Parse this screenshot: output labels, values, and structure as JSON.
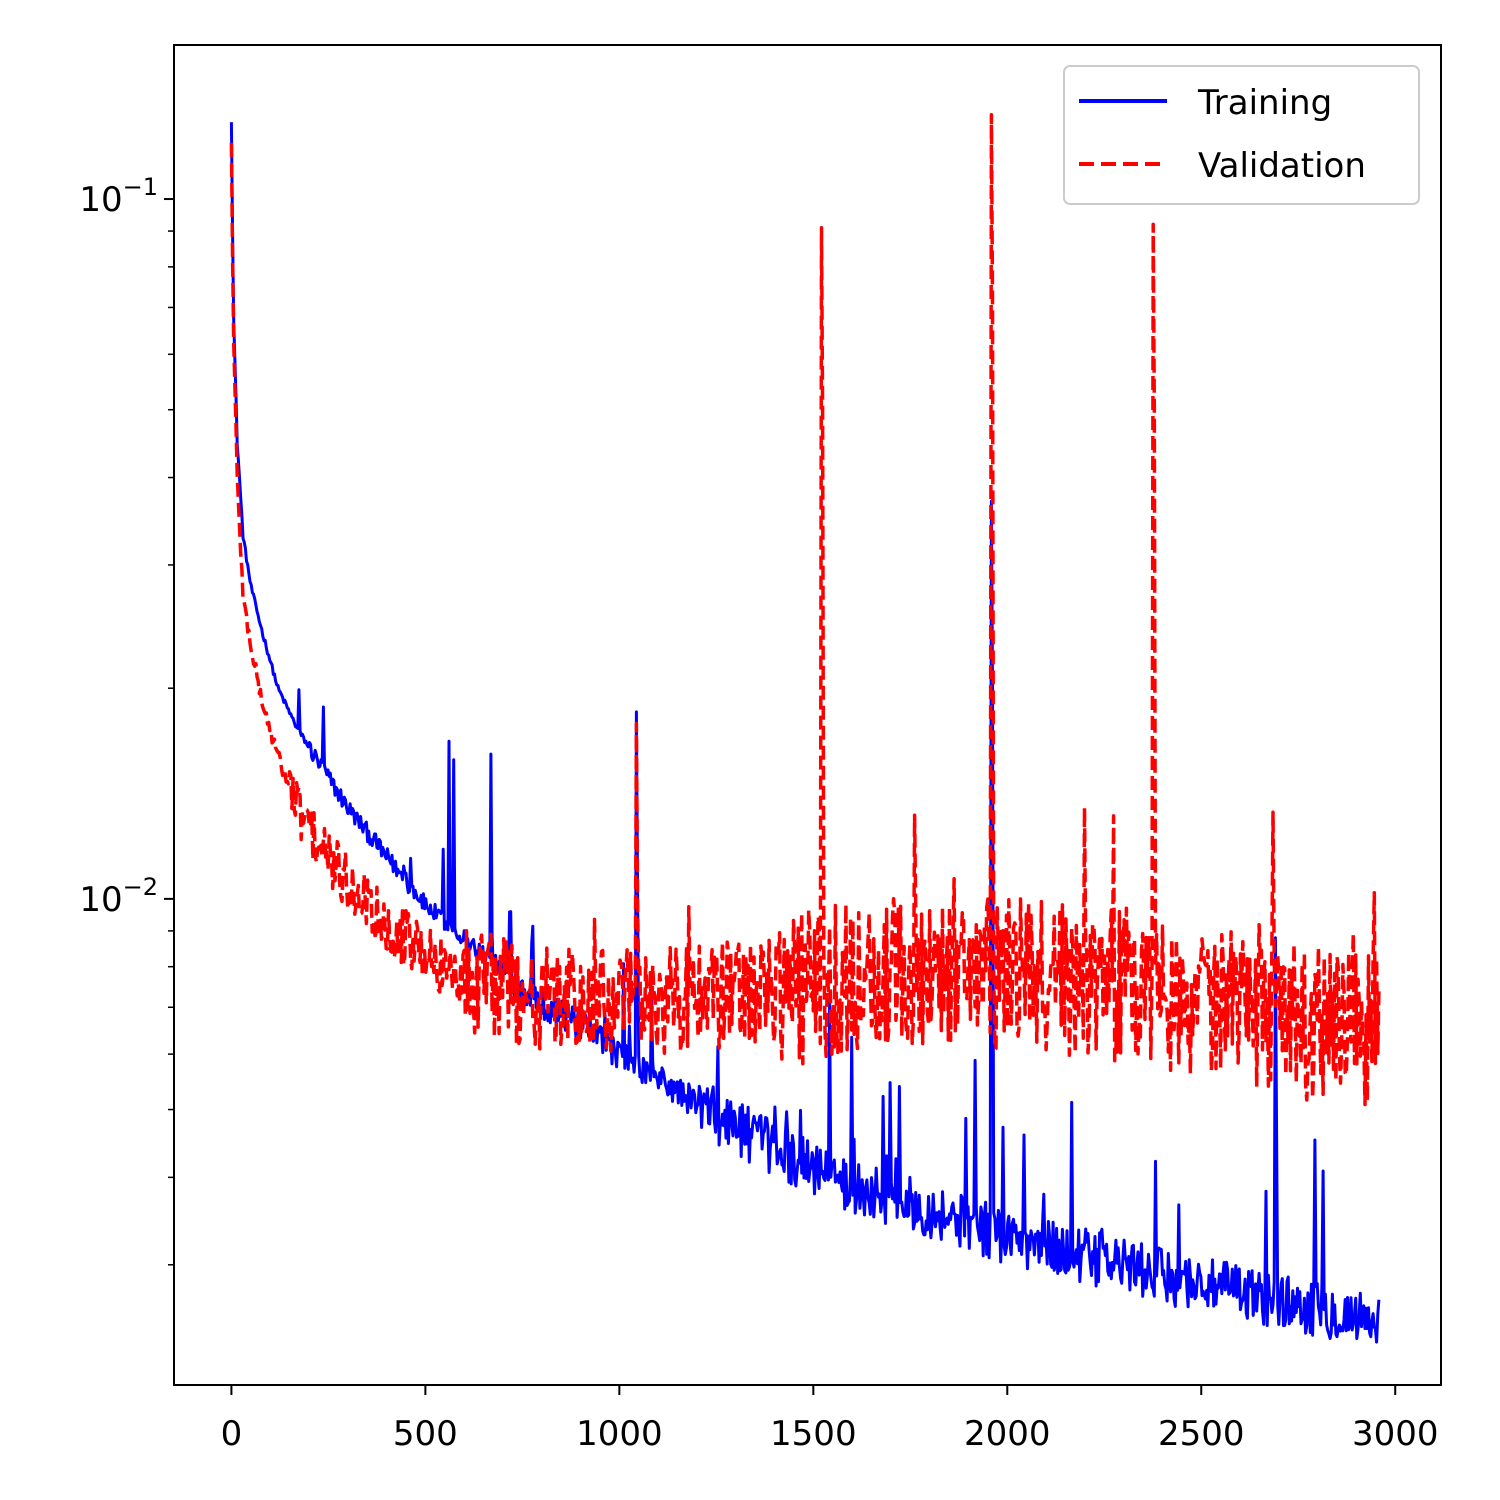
{
  "chart_data": {
    "type": "line",
    "title": "",
    "xlabel": "",
    "ylabel": "",
    "xscale": "linear",
    "yscale": "log",
    "xlim": [
      -148,
      3118
    ],
    "ylim": [
      0.00202,
      0.166
    ],
    "grid": false,
    "legend_position": "top-right",
    "x_ticks": [
      {
        "value": 0,
        "label": "0"
      },
      {
        "value": 500,
        "label": "500"
      },
      {
        "value": 1000,
        "label": "1000"
      },
      {
        "value": 1500,
        "label": "1500"
      },
      {
        "value": 2000,
        "label": "2000"
      },
      {
        "value": 2500,
        "label": "2500"
      },
      {
        "value": 3000,
        "label": "3000"
      }
    ],
    "y_major_ticks": [
      {
        "value": 0.1,
        "label": "10^-1"
      },
      {
        "value": 0.01,
        "label": "10^-2"
      }
    ],
    "y_minor_ticks": [
      0.003,
      0.004,
      0.005,
      0.006,
      0.007,
      0.008,
      0.009,
      0.02,
      0.03,
      0.04,
      0.05,
      0.06,
      0.07,
      0.08,
      0.09
    ],
    "series": [
      {
        "name": "Training",
        "color": "#0000ff",
        "linestyle": "solid",
        "anchors_x": [
          0,
          5,
          15,
          30,
          50,
          80,
          120,
          170,
          230,
          300,
          400,
          500,
          600,
          700,
          800,
          900,
          1000,
          1200,
          1400,
          1600,
          1800,
          2000,
          2200,
          2400,
          2600,
          2800,
          2960
        ],
        "anchors_y": [
          0.13,
          0.07,
          0.045,
          0.033,
          0.028,
          0.024,
          0.02,
          0.0175,
          0.0155,
          0.0135,
          0.0115,
          0.0098,
          0.0088,
          0.0079,
          0.0071,
          0.0066,
          0.006,
          0.0051,
          0.0044,
          0.0039,
          0.0036,
          0.0033,
          0.0031,
          0.0029,
          0.00275,
          0.0026,
          0.0025
        ],
        "spikes": [
          {
            "x": 175,
            "y": 0.0199
          },
          {
            "x": 238,
            "y": 0.0188
          },
          {
            "x": 560,
            "y": 0.0168
          },
          {
            "x": 573,
            "y": 0.0158
          },
          {
            "x": 668,
            "y": 0.0161
          },
          {
            "x": 1045,
            "y": 0.0185
          },
          {
            "x": 1960,
            "y": 0.037
          },
          {
            "x": 2690,
            "y": 0.0088
          }
        ]
      },
      {
        "name": "Validation",
        "color": "#ff0000",
        "linestyle": "dashed",
        "anchors_x": [
          0,
          5,
          15,
          30,
          50,
          80,
          120,
          170,
          230,
          300,
          400,
          500,
          600,
          700,
          800,
          900,
          1000,
          1200,
          1400,
          1600,
          1800,
          2000,
          2200,
          2400,
          2600,
          2800,
          2960
        ],
        "anchors_y": [
          0.12,
          0.065,
          0.04,
          0.027,
          0.023,
          0.019,
          0.016,
          0.0135,
          0.0118,
          0.0105,
          0.0093,
          0.0083,
          0.0077,
          0.0074,
          0.0072,
          0.0071,
          0.0071,
          0.0072,
          0.0074,
          0.0077,
          0.0079,
          0.0078,
          0.0077,
          0.0074,
          0.0069,
          0.0066,
          0.0064
        ],
        "spikes": [
          {
            "x": 1045,
            "y": 0.0178
          },
          {
            "x": 1520,
            "y": 0.091
          },
          {
            "x": 1958,
            "y": 0.132
          },
          {
            "x": 2200,
            "y": 0.0135
          },
          {
            "x": 2375,
            "y": 0.092
          },
          {
            "x": 2685,
            "y": 0.0133
          },
          {
            "x": 2945,
            "y": 0.0102
          }
        ]
      }
    ]
  }
}
